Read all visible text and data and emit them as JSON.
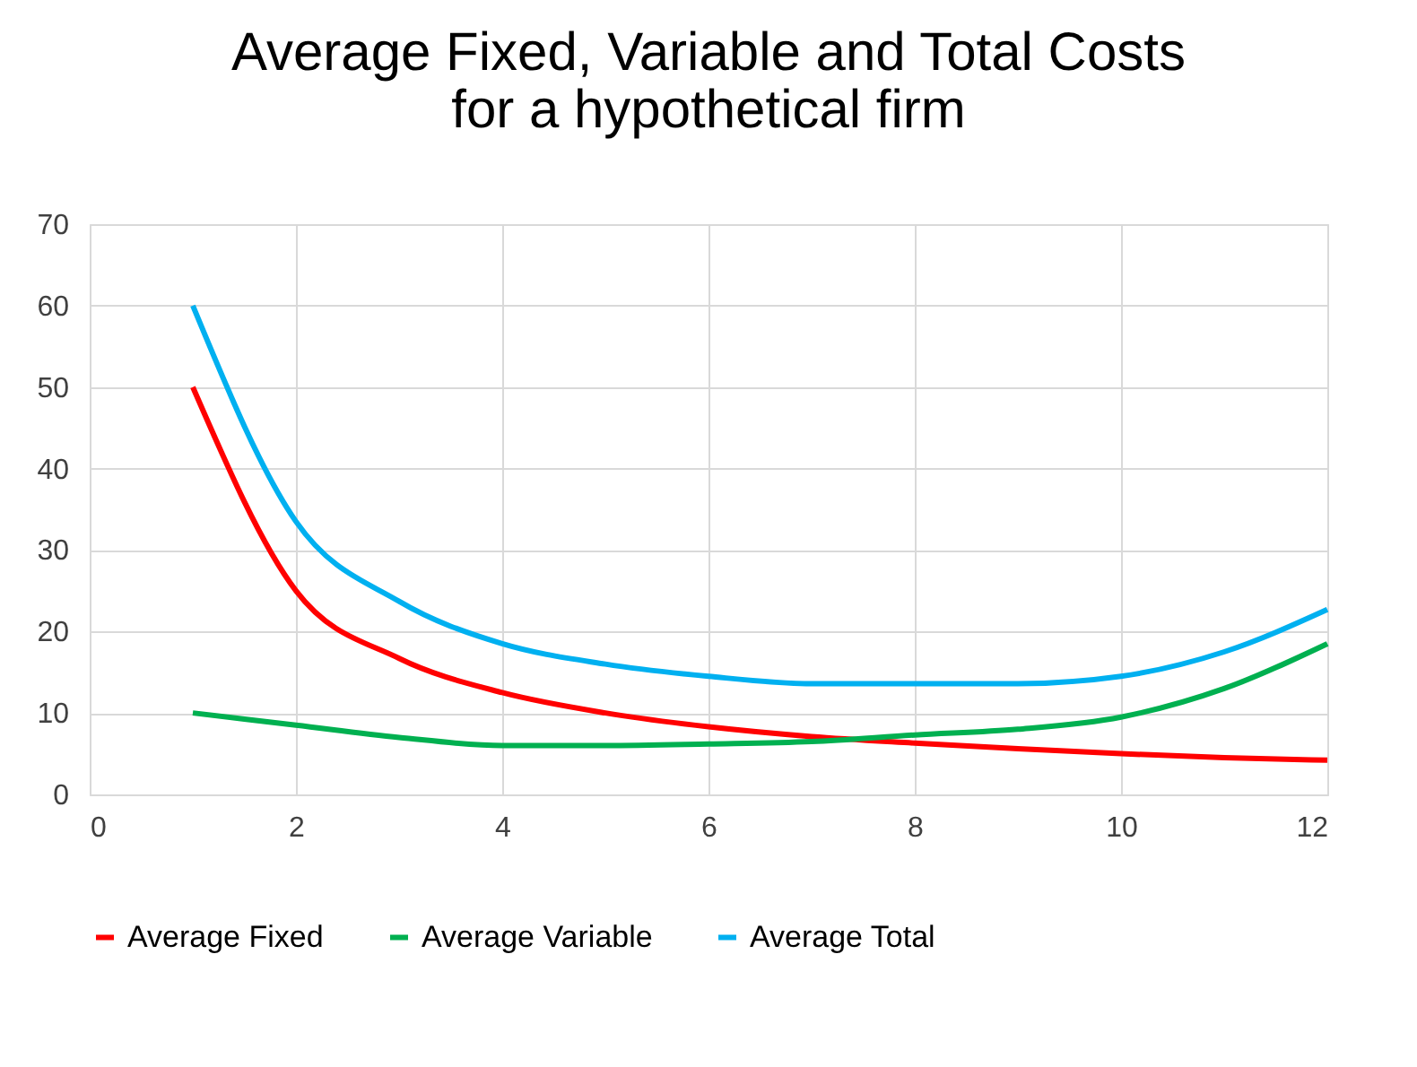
{
  "chart_data": {
    "type": "line",
    "title": "Average Fixed, Variable and Total Costs\nfor a hypothetical firm",
    "x": [
      1,
      2,
      3,
      4,
      5,
      6,
      7,
      8,
      9,
      10,
      11,
      12
    ],
    "series": [
      {
        "name": "Average Fixed",
        "color": "#ff0000",
        "values": [
          50,
          25,
          16.7,
          12.5,
          10,
          8.3,
          7.1,
          6.3,
          5.6,
          5,
          4.5,
          4.2
        ]
      },
      {
        "name": "Average Variable",
        "color": "#00b050",
        "values": [
          10,
          8.5,
          7,
          6,
          6,
          6.2,
          6.5,
          7.3,
          8,
          9.5,
          13,
          18.5
        ]
      },
      {
        "name": "Average Total",
        "color": "#00b0f0",
        "values": [
          60,
          33.5,
          23.7,
          18.5,
          16,
          14.5,
          13.6,
          13.6,
          13.6,
          14.5,
          17.5,
          22.7
        ]
      }
    ],
    "xlim": [
      0,
      12
    ],
    "xticks": [
      0,
      2,
      4,
      6,
      8,
      10,
      12
    ],
    "ylim": [
      0,
      70
    ],
    "yticks": [
      0,
      10,
      20,
      30,
      40,
      50,
      60,
      70
    ],
    "grid": true,
    "legend": "bottom",
    "marker": "none",
    "line_style": "solid"
  }
}
